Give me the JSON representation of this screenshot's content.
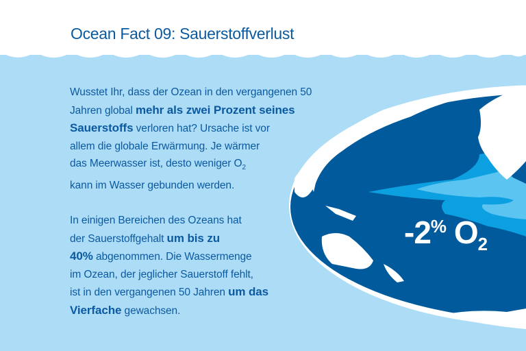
{
  "title": "Ocean Fact 09: Sauerstoffverlust",
  "paragraph1": {
    "t1": "Wusstet Ihr, dass der Ozean in den vergangenen 50",
    "t2": "Jahren global ",
    "b1": "mehr als zwei Prozent seines",
    "b2": "Sauerstoffs",
    "t3": " verloren hat? Ursache ist vor",
    "t4": "allem die globale Erwärmung. Je wärmer",
    "t5": "das Meerwasser ist, desto weniger O",
    "sub": "2",
    "t6": "kann im Wasser gebunden werden."
  },
  "paragraph2": {
    "t1": "In einigen Bereichen des Ozeans hat",
    "t2": "der Sauerstoffgehalt ",
    "b1": "um bis zu",
    "b2": "40%",
    "t3": " abgenommen. Die Wassermenge",
    "t4": "im Ozean, der jeglicher Sauerstoff fehlt,",
    "t5": "ist in den vergangenen 50 Jahren ",
    "b3": "um das",
    "b4": "Vierfache",
    "t6": " gewachsen."
  },
  "badge": {
    "value": "-2",
    "unit": "%",
    "gas": "O",
    "sub": "2"
  },
  "colors": {
    "sky": "#ffffff",
    "water": "#addcf7",
    "ocean": "#005a9c",
    "text": "#0b5aa0",
    "zone_outer": "#0da0e0",
    "zone_inner": "#5bc4f0",
    "land": "#ffffff"
  }
}
